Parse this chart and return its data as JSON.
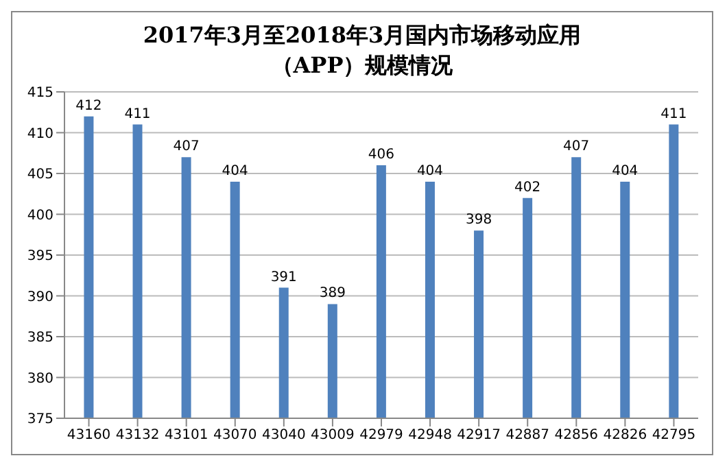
{
  "chart_data": {
    "type": "bar",
    "title": "2017年3月至2018年3月国内市场移动应用（APP）规模情况",
    "categories": [
      "43160",
      "43132",
      "43101",
      "43070",
      "43040",
      "43009",
      "42979",
      "42948",
      "42917",
      "42887",
      "42856",
      "42826",
      "42795"
    ],
    "values": [
      412,
      411,
      407,
      404,
      391,
      389,
      406,
      404,
      398,
      402,
      407,
      404,
      411
    ],
    "color": "#4f81bd",
    "ylim": [
      375,
      415
    ],
    "yticks": [
      375,
      380,
      385,
      390,
      395,
      400,
      405,
      410,
      415
    ],
    "grid": "y",
    "data_labels": true
  }
}
